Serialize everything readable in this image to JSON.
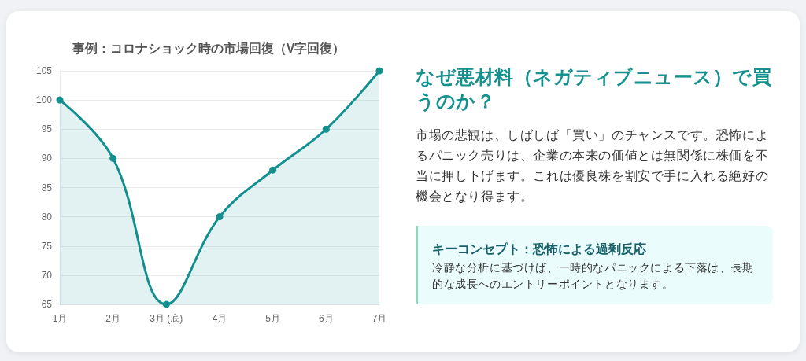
{
  "chart_data": [
    {
      "type": "area",
      "title": "事例：コロナショック時の市場回復（V字回復）",
      "categories": [
        "1月",
        "2月",
        "3月 (底)",
        "4月",
        "5月",
        "6月",
        "7月"
      ],
      "values": [
        100,
        90,
        65,
        80,
        88,
        95,
        105
      ],
      "color": "#128f8f",
      "ylim": [
        65,
        105
      ],
      "yticks": [
        65,
        70,
        75,
        80,
        85,
        90,
        95,
        100,
        105
      ],
      "grid": "y",
      "marker": "circle",
      "line_style": "solid"
    },
    {
      "type": "other",
      "title": "なぜ悪材料（ネガティブニュース）で買うのか？",
      "annotations": [
        "市場の悲観は、しばしば「買い」のチャンスです。恐怖によるパニック売りは、企業の本来の価値とは無関係に株価を不当に押し下げます。これは優良株を割安で手に入れる絶好の機会となり得ます。",
        "キーコンセプト：恐怖による過剰反応",
        "冷静な分析に基づけば、一時的なパニックによる下落は、長期的な成長へのエントリーポイントとなります。"
      ]
    }
  ]
}
